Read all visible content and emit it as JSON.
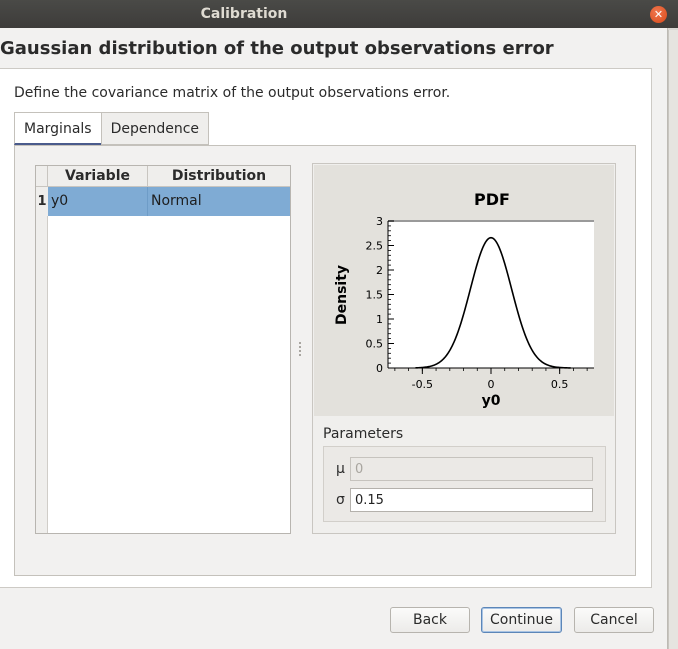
{
  "window": {
    "title": "Calibration"
  },
  "heading": "Gaussian distribution of the output observations error",
  "subtitle": "Define the covariance matrix of the output observations error.",
  "tabs": [
    {
      "label": "Marginals",
      "active": true
    },
    {
      "label": "Dependence",
      "active": false
    }
  ],
  "table": {
    "headers": [
      "Variable",
      "Distribution"
    ],
    "rows": [
      {
        "num": "1",
        "variable": "y0",
        "distribution": "Normal",
        "selected": true
      }
    ]
  },
  "chart_data": {
    "type": "line",
    "title": "PDF",
    "xlabel": "y0",
    "ylabel": "Density",
    "xlim": [
      -0.75,
      0.75
    ],
    "ylim": [
      0,
      3
    ],
    "xticks": [
      "-0.5",
      "0",
      "0.5"
    ],
    "yticks": [
      "0",
      "0.5",
      "1",
      "1.5",
      "2",
      "2.5",
      "3"
    ],
    "series": [
      {
        "distribution": "Normal",
        "mu": 0,
        "sigma": 0.15,
        "x_range": [
          -0.55,
          0.58
        ],
        "peak": 2.66
      }
    ]
  },
  "parameters": {
    "label": "Parameters",
    "mu": {
      "symbol": "μ",
      "value": "0",
      "enabled": false
    },
    "sigma": {
      "symbol": "σ",
      "value": "0.15",
      "enabled": true
    }
  },
  "buttons": {
    "back": "Back",
    "continue": "Continue",
    "cancel": "Cancel"
  },
  "colors": {
    "selection": "#7fabd4",
    "titlebar": "#3d3c3a",
    "close": "#e0541e",
    "focus": "#5c86b8"
  }
}
